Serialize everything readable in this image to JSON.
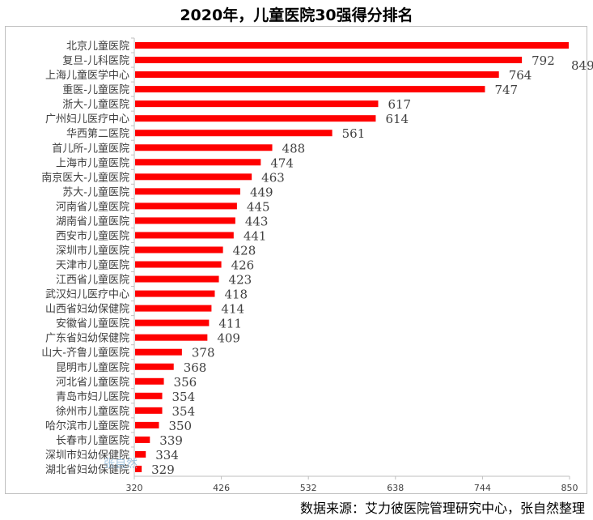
{
  "chart_data": {
    "type": "bar",
    "orientation": "horizontal",
    "title": "2020年，儿童医院30强得分排名",
    "categories": [
      "北京儿童医院",
      "复旦-儿科医院",
      "上海儿童医学中心",
      "重医-儿童医院",
      "浙大-儿童医院",
      "广州妇儿医疗中心",
      "华西第二医院",
      "首儿所-儿童医院",
      "上海市儿童医院",
      "南京医大-儿童医院",
      "苏大-儿童医院",
      "河南省儿童医院",
      "湖南省儿童医院",
      "西安市儿童医院",
      "深圳市儿童医院",
      "天津市儿童医院",
      "江西省儿童医院",
      "武汉妇儿医疗中心",
      "山西省妇幼保健院",
      "安徽省儿童医院",
      "广东省妇幼保健院",
      "山大-齐鲁儿童医院",
      "昆明市儿童医院",
      "河北省儿童医院",
      "青岛市妇儿医院",
      "徐州市儿童医院",
      "哈尔滨市儿童医院",
      "长春市儿童医院",
      "深圳市妇幼保健院",
      "湖北省妇幼保健院"
    ],
    "values": [
      849,
      792,
      764,
      747,
      617,
      614,
      561,
      488,
      474,
      463,
      449,
      445,
      443,
      441,
      428,
      426,
      423,
      418,
      414,
      411,
      409,
      378,
      368,
      356,
      354,
      354,
      350,
      339,
      334,
      329
    ],
    "xlim": [
      320,
      850
    ],
    "xticks": [
      320,
      426,
      532,
      638,
      744,
      850
    ],
    "bar_color": "#ff0000",
    "grid": false
  },
  "source": "数据来源：艾力彼医院管理研究中心，张自然整理",
  "watermark": "张自然"
}
